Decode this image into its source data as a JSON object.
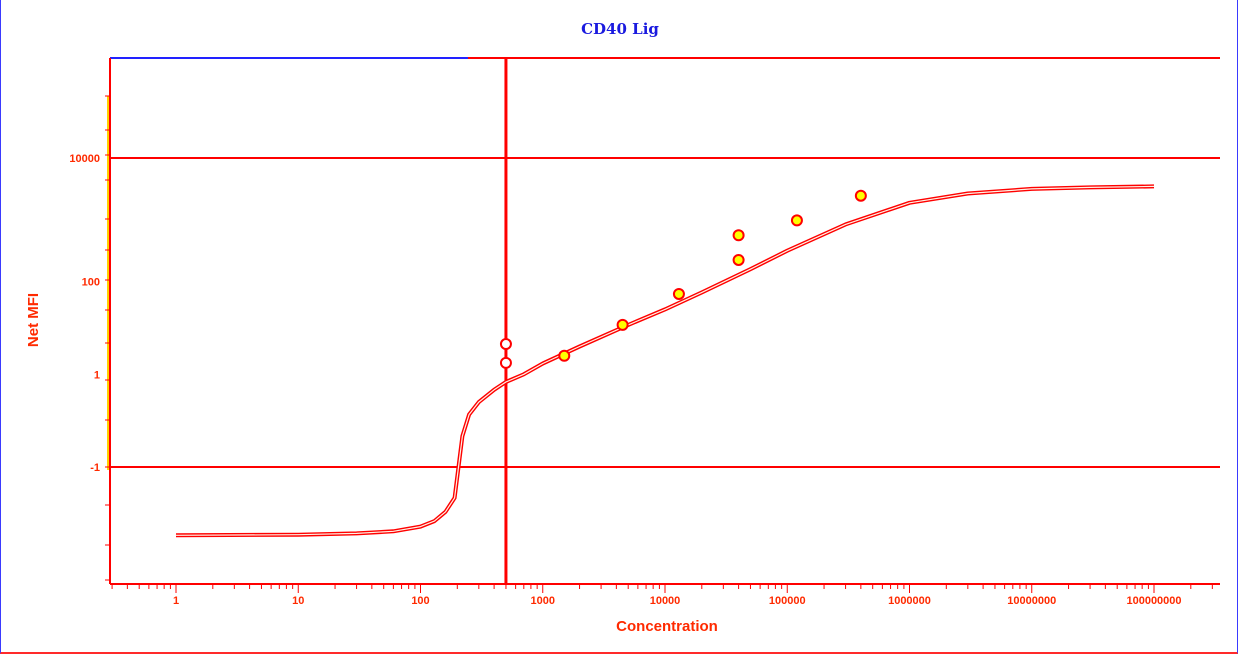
{
  "chart_data": {
    "type": "line",
    "title": "CD40 Lig",
    "xlabel": "Concentration",
    "ylabel": "Net MFI",
    "x_scale": "log",
    "xlim": [
      0.3,
      300000000
    ],
    "x_ticks": [
      1,
      10,
      100,
      1000,
      10000,
      100000,
      1000000,
      10000000,
      100000000
    ],
    "x_tick_labels": [
      "1",
      "10",
      "100",
      "1000",
      "10000",
      "100000",
      "1000000",
      "10000000",
      "100000000"
    ],
    "y_tick_labels": [
      "10000",
      "100",
      "1",
      "-1"
    ],
    "grid": false,
    "series": [
      {
        "kind": "fit-curve",
        "x": [
          1,
          10,
          30,
          60,
          100,
          130,
          160,
          190,
          220,
          250,
          300,
          400,
          500,
          700,
          1000,
          2000,
          5000,
          10000,
          20000,
          50000,
          100000,
          300000,
          1000000,
          3000000,
          10000000,
          30000000,
          100000000
        ],
        "y_level": [
          -2.21,
          -2.19,
          -2.15,
          -2.08,
          -1.93,
          -1.75,
          -1.45,
          -1.0,
          1.0,
          1.7,
          2.1,
          2.5,
          2.75,
          3.0,
          3.35,
          3.9,
          4.6,
          5.1,
          5.65,
          6.4,
          7.0,
          7.85,
          8.55,
          8.85,
          9.0,
          9.05,
          9.08
        ]
      },
      {
        "kind": "points",
        "x": [
          500,
          500,
          1500,
          4500,
          13000,
          40000,
          40000,
          120000,
          400000
        ],
        "y_level": [
          3.98,
          3.37,
          3.6,
          4.6,
          5.6,
          6.7,
          7.5,
          7.98,
          8.78
        ],
        "filled": [
          false,
          false,
          true,
          true,
          true,
          true,
          true,
          true,
          true
        ]
      }
    ],
    "reference_lines": [
      {
        "orientation": "horizontal",
        "y_level": 10
      },
      {
        "orientation": "horizontal",
        "y_level": 0
      },
      {
        "orientation": "vertical",
        "x": 500
      }
    ],
    "colors": {
      "axes": "#ff0000",
      "curve": "#ff0000",
      "point_fill": "#ffff00",
      "title": "#1a1adf",
      "top_border_left": "#2222ff"
    }
  }
}
